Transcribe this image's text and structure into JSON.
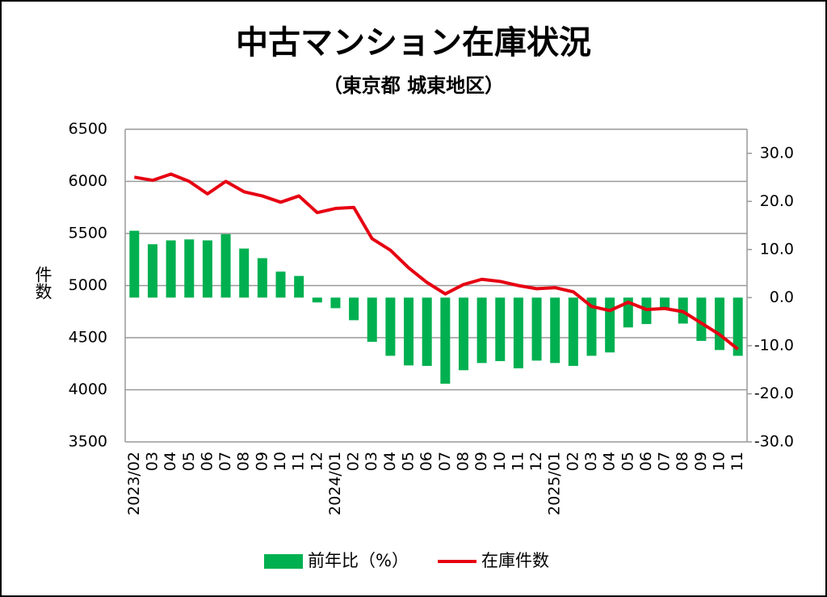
{
  "chart_data": {
    "type": "combo",
    "title": "中古マンション在庫状況",
    "subtitle": "（東京都 城東地区）",
    "y_label": "件数",
    "categories": [
      "2023/02",
      "03",
      "04",
      "05",
      "06",
      "07",
      "08",
      "09",
      "10",
      "11",
      "12",
      "2024/01",
      "02",
      "03",
      "04",
      "05",
      "06",
      "07",
      "08",
      "09",
      "10",
      "11",
      "12",
      "2025/01",
      "02",
      "03",
      "04",
      "05",
      "06",
      "07",
      "08",
      "09",
      "10",
      "11"
    ],
    "series": [
      {
        "name": "前年比（%）",
        "type": "bar",
        "axis": "y2",
        "color": "#00b050",
        "values": [
          13.9,
          11.1,
          11.9,
          12.1,
          11.9,
          13.2,
          10.2,
          8.2,
          5.4,
          4.5,
          -1.0,
          -2.2,
          -4.7,
          -9.2,
          -12.1,
          -14.1,
          -14.2,
          -17.9,
          -15.1,
          -13.6,
          -13.2,
          -14.7,
          -13.1,
          -13.6,
          -14.2,
          -12.1,
          -11.4,
          -6.2,
          -5.5,
          -2.2,
          -5.4,
          -9.0,
          -10.9,
          -12.1
        ]
      },
      {
        "name": "在庫件数",
        "type": "line",
        "axis": "y",
        "color": "#e60012",
        "values": [
          6040,
          6010,
          6070,
          6000,
          5880,
          6000,
          5900,
          5860,
          5800,
          5860,
          5700,
          5740,
          5750,
          5450,
          5340,
          5170,
          5030,
          4920,
          5010,
          5060,
          5040,
          5000,
          4970,
          4980,
          4940,
          4800,
          4760,
          4840,
          4770,
          4780,
          4750,
          4640,
          4530,
          4390
        ]
      }
    ],
    "ylim": [
      3500,
      6500
    ],
    "yticks": [
      3500,
      4000,
      4500,
      5000,
      5500,
      6000,
      6500
    ],
    "y2lim": [
      -30,
      35
    ],
    "y2ticks": [
      {
        "value": -30,
        "label": "-30.0"
      },
      {
        "value": -20,
        "label": "-20.0"
      },
      {
        "value": -10,
        "label": "-10.0"
      },
      {
        "value": 0,
        "label": "0.0"
      },
      {
        "value": 10,
        "label": "10.0"
      },
      {
        "value": 20,
        "label": "20.0"
      },
      {
        "value": 30,
        "label": "30.0"
      }
    ],
    "negative_label_color": "#e60012",
    "grid": true,
    "legend": "bottom"
  }
}
